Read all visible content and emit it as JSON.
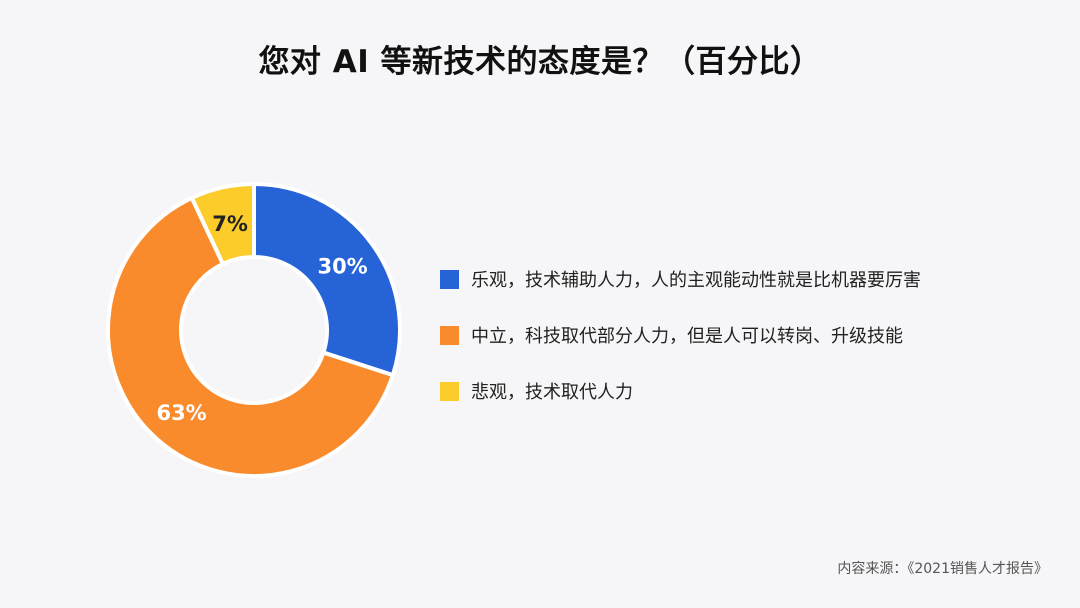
{
  "chart_data": {
    "type": "pie",
    "title": "您对 AI 等新技术的态度是？（百分比）",
    "donut": true,
    "slices": [
      {
        "label": "乐观，技术辅助人力，人的主观能动性就是比机器要厉害",
        "value": 30,
        "display": "30%",
        "color": "#2563d6",
        "label_color": "#ffffff"
      },
      {
        "label": "中立，科技取代部分人力，但是人可以转岗、升级技能",
        "value": 63,
        "display": "63%",
        "color": "#f98b2d",
        "label_color": "#ffffff"
      },
      {
        "label": "悲观，技术取代人力",
        "value": 7,
        "display": "7%",
        "color": "#fccc2b",
        "label_color": "#222222"
      }
    ],
    "legend": [
      {
        "color": "#2563d6",
        "label": "乐观，技术辅助人力，人的主观能动性就是比机器要厉害"
      },
      {
        "color": "#f98b2d",
        "label": "中立，科技取代部分人力，但是人可以转岗、升级技能"
      },
      {
        "color": "#fccc2b",
        "label": "悲观，技术取代人力"
      }
    ],
    "legend_position": "right"
  },
  "source": "内容来源：《2021销售人才报告》"
}
